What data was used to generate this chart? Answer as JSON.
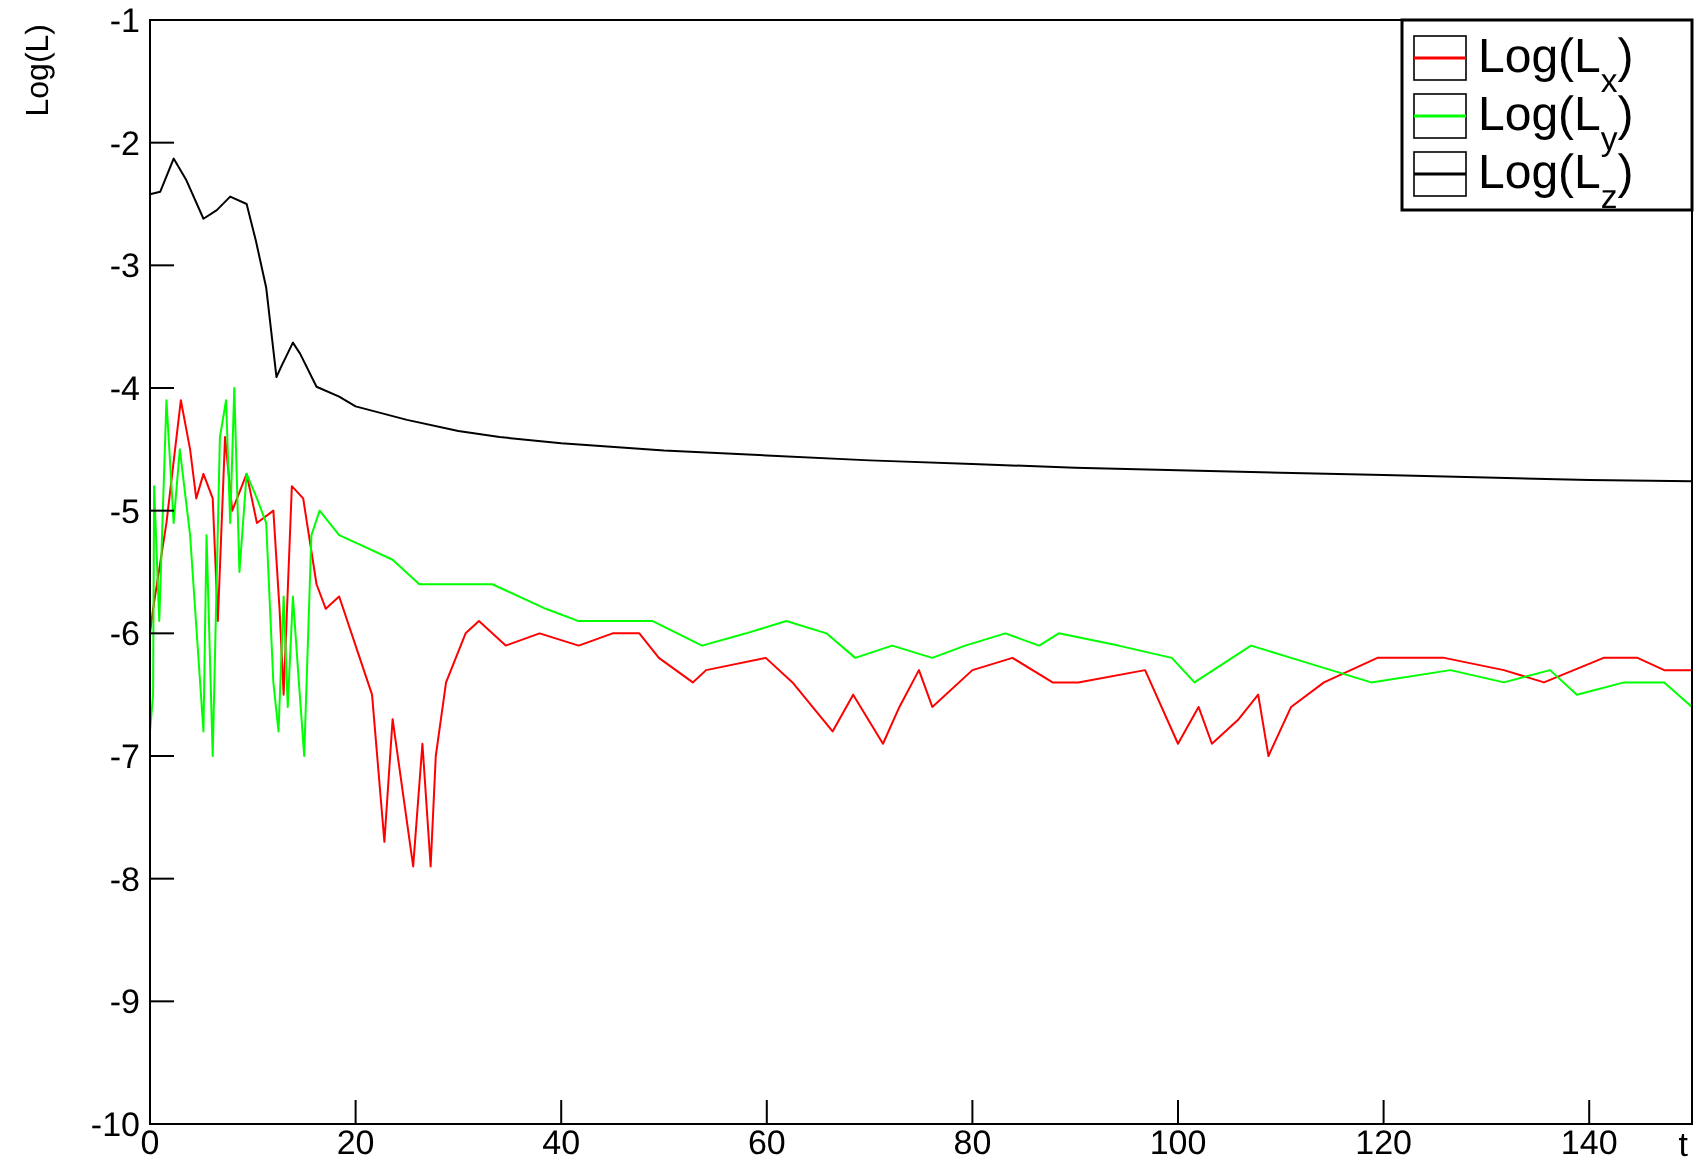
{
  "chart_data": {
    "type": "line",
    "xlabel": "t",
    "ylabel": "Log(L)",
    "xlim": [
      0,
      150
    ],
    "xticks": [
      0,
      20,
      40,
      60,
      80,
      100,
      120,
      140
    ],
    "ylim": [
      -10,
      -1
    ],
    "yticks": [
      -10,
      -9,
      -8,
      -7,
      -6,
      -5,
      -4,
      -3,
      -2,
      -1
    ],
    "grid": false,
    "legend": "top right",
    "marker": "none",
    "line_style": "solid",
    "series": [
      {
        "name": "Log(L$_{x}$)",
        "color": "#ff0000",
        "x": [
          0,
          0.3,
          1.6,
          2.3,
          3.0,
          3.9,
          4.5,
          5.2,
          6.1,
          6.6,
          7.3,
          8.0,
          9.4,
          10.4,
          12,
          12.6,
          13,
          13.8,
          14.9,
          16.2,
          17.1,
          18.4,
          20.4,
          21.6,
          22.8,
          23.6,
          24.6,
          25.6,
          26.5,
          27.3,
          27.8,
          28.8,
          30.7,
          32,
          34.6,
          37.9,
          41.7,
          45,
          47.6,
          49.5,
          52.8,
          54.1,
          59.9,
          62.5,
          66.4,
          68.4,
          71.3,
          72.9,
          74.8,
          76.1,
          80,
          83.9,
          87.8,
          90.3,
          96.8,
          100,
          102,
          103.3,
          105.9,
          107.8,
          108.8,
          111,
          114.2,
          119.4,
          125.9,
          131.7,
          135.6,
          141.4,
          144.7,
          147.3,
          150
        ],
        "values": [
          -6.0,
          -5.8,
          -5.1,
          -4.6,
          -4.1,
          -4.5,
          -4.9,
          -4.7,
          -4.9,
          -5.9,
          -4.4,
          -5.0,
          -4.7,
          -5.1,
          -5.0,
          -5.8,
          -6.5,
          -4.8,
          -4.9,
          -5.6,
          -5.8,
          -5.7,
          -6.2,
          -6.5,
          -7.7,
          -6.7,
          -7.3,
          -7.9,
          -6.9,
          -7.9,
          -7.0,
          -6.4,
          -6.0,
          -5.9,
          -6.1,
          -6.0,
          -6.1,
          -6.0,
          -6.0,
          -6.2,
          -6.4,
          -6.3,
          -6.2,
          -6.4,
          -6.8,
          -6.5,
          -6.9,
          -6.6,
          -6.3,
          -6.6,
          -6.3,
          -6.2,
          -6.4,
          -6.4,
          -6.3,
          -6.9,
          -6.6,
          -6.9,
          -6.7,
          -6.5,
          -7.0,
          -6.6,
          -6.4,
          -6.2,
          -6.2,
          -6.3,
          -6.4,
          -6.2,
          -6.2,
          -6.3,
          -6.3
        ]
      },
      {
        "name": "Log(L$_{y}$)",
        "color": "#00ff00",
        "x": [
          0,
          0.3,
          0.4,
          0.9,
          1.6,
          2.3,
          2.9,
          3.9,
          5.2,
          5.5,
          6.1,
          6.8,
          7.4,
          7.8,
          8.2,
          8.7,
          9.4,
          10.4,
          11.3,
          12.0,
          12.5,
          13.0,
          13.4,
          13.9,
          14.4,
          15.0,
          15.7,
          16.5,
          18.4,
          21,
          23.6,
          26.2,
          29.4,
          33.3,
          38.5,
          41.7,
          45,
          48.9,
          53.7,
          58,
          61.9,
          65.8,
          68.6,
          72.2,
          76.1,
          79.3,
          83.2,
          86.5,
          88.4,
          94.2,
          99.4,
          101.6,
          107.1,
          111,
          114.9,
          118.8,
          126.5,
          131.7,
          136.2,
          138.8,
          143.4,
          147.3,
          150
        ],
        "values": [
          -6.8,
          -6.5,
          -4.8,
          -5.9,
          -4.1,
          -5.1,
          -4.5,
          -5.2,
          -6.8,
          -5.2,
          -7.0,
          -4.4,
          -4.1,
          -5.1,
          -4.0,
          -5.5,
          -4.7,
          -4.9,
          -5.1,
          -6.4,
          -6.8,
          -5.7,
          -6.6,
          -5.7,
          -6.3,
          -7.0,
          -5.2,
          -5.0,
          -5.2,
          -5.3,
          -5.4,
          -5.6,
          -5.6,
          -5.6,
          -5.8,
          -5.9,
          -5.9,
          -5.9,
          -6.1,
          -6.0,
          -5.9,
          -6.0,
          -6.2,
          -6.1,
          -6.2,
          -6.1,
          -6.0,
          -6.1,
          -6.0,
          -6.1,
          -6.2,
          -6.4,
          -6.1,
          -6.2,
          -6.3,
          -6.4,
          -6.3,
          -6.4,
          -6.3,
          -6.5,
          -6.4,
          -6.4,
          -6.6
        ]
      },
      {
        "name": "Log(L$_{z}$)",
        "color": "#000000",
        "x": [
          0,
          1,
          2.3,
          3.5,
          5.2,
          6.5,
          7.8,
          9.4,
          10.3,
          11.3,
          12.3,
          12.8,
          13.9,
          14.6,
          16.2,
          18.4,
          20,
          25,
          30,
          34,
          40,
          50,
          60,
          70,
          80,
          90,
          100,
          110,
          120,
          130,
          140,
          150
        ],
        "values": [
          -2.42,
          -2.4,
          -2.13,
          -2.3,
          -2.62,
          -2.55,
          -2.44,
          -2.5,
          -2.8,
          -3.18,
          -3.91,
          -3.82,
          -3.63,
          -3.72,
          -3.99,
          -4.07,
          -4.15,
          -4.26,
          -4.35,
          -4.4,
          -4.45,
          -4.51,
          -4.55,
          -4.59,
          -4.62,
          -4.65,
          -4.67,
          -4.69,
          -4.71,
          -4.73,
          -4.75,
          -4.76
        ]
      }
    ]
  }
}
